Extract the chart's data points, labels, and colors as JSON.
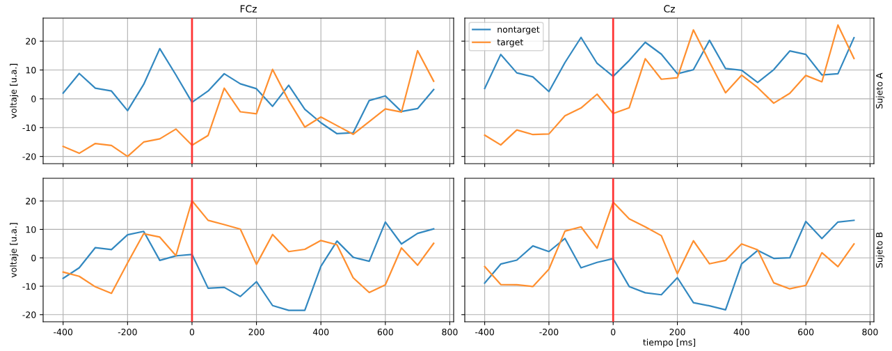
{
  "chart_data": [
    {
      "type": "line",
      "title": "FCz",
      "ylabel": "voltaje [u.a.]",
      "x": [
        -400,
        -350,
        -300,
        -250,
        -200,
        -150,
        -100,
        -50,
        0,
        50,
        100,
        150,
        200,
        250,
        300,
        350,
        400,
        450,
        500,
        550,
        600,
        650,
        700,
        750
      ],
      "xlim": [
        -462,
        812
      ],
      "xticks": [
        -400,
        -200,
        0,
        200,
        400,
        600,
        800
      ],
      "ylim": [
        -22.5,
        28
      ],
      "yticks": [
        -20,
        -10,
        0,
        10,
        20
      ],
      "grid": true,
      "tick_labels": "y",
      "series": [
        {
          "color": "#3288c0",
          "values": [
            2.0,
            8.8,
            3.7,
            2.7,
            -4.1,
            5.0,
            17.4,
            8.3,
            -1.2,
            2.7,
            8.7,
            5.2,
            3.5,
            -2.6,
            4.7,
            -3.6,
            -8.3,
            -12.1,
            -11.8,
            -0.6,
            1.0,
            -4.4,
            -3.4,
            3.2
          ]
        },
        {
          "color": "#ff8f2f",
          "values": [
            -16.5,
            -18.9,
            -15.5,
            -16.2,
            -20.0,
            -15.0,
            -13.9,
            -10.5,
            -16.1,
            -12.7,
            3.7,
            -4.5,
            -5.2,
            10.2,
            -0.6,
            -9.8,
            -6.3,
            -9.3,
            -12.3,
            -7.9,
            -3.5,
            -4.6,
            16.7,
            6.1
          ]
        }
      ],
      "ref_lines": [
        {
          "axis": "x",
          "value": 0,
          "color": "#ff3333"
        }
      ]
    },
    {
      "type": "line",
      "title": "Cz",
      "y2label": "Sujeto A",
      "x": [
        -400,
        -350,
        -300,
        -250,
        -200,
        -150,
        -100,
        -50,
        0,
        50,
        100,
        150,
        200,
        250,
        300,
        350,
        400,
        450,
        500,
        550,
        600,
        650,
        700,
        750
      ],
      "xlim": [
        -462,
        812
      ],
      "xticks": [
        -400,
        -200,
        0,
        200,
        400,
        600,
        800
      ],
      "ylim": [
        -22.5,
        28
      ],
      "yticks": [
        -20,
        -10,
        0,
        10,
        20
      ],
      "grid": true,
      "tick_labels": false,
      "legend": "top left",
      "series": [
        {
          "name": "nontarget",
          "color": "#3288c0",
          "values": [
            3.6,
            15.4,
            9.0,
            7.6,
            2.5,
            12.6,
            21.3,
            12.3,
            7.8,
            13.3,
            19.6,
            15.5,
            8.7,
            10.1,
            20.3,
            10.5,
            9.9,
            5.7,
            10.1,
            16.6,
            15.4,
            8.3,
            8.7,
            21.2
          ]
        },
        {
          "name": "target",
          "color": "#ff8f2f",
          "values": [
            -12.6,
            -16.0,
            -10.8,
            -12.4,
            -12.2,
            -5.9,
            -3.2,
            1.6,
            -5.1,
            -3.1,
            13.9,
            6.8,
            7.3,
            23.9,
            12.8,
            2.1,
            8.2,
            3.9,
            -1.5,
            1.9,
            8.1,
            5.9,
            25.6,
            14.0
          ]
        }
      ],
      "ref_lines": [
        {
          "axis": "x",
          "value": 0,
          "color": "#ff3333"
        }
      ]
    },
    {
      "type": "line",
      "ylabel": "voltaje [u.a.]",
      "x": [
        -400,
        -350,
        -300,
        -250,
        -200,
        -150,
        -100,
        -50,
        0,
        50,
        100,
        150,
        200,
        250,
        300,
        350,
        400,
        450,
        500,
        550,
        600,
        650,
        700,
        750
      ],
      "xlim": [
        -462,
        812
      ],
      "xticks": [
        -400,
        -200,
        0,
        200,
        400,
        600,
        800
      ],
      "ylim": [
        -22.5,
        28
      ],
      "yticks": [
        -20,
        -10,
        0,
        10,
        20
      ],
      "grid": true,
      "series": [
        {
          "color": "#3288c0",
          "values": [
            -7.2,
            -3.5,
            3.6,
            2.9,
            8.1,
            9.3,
            -0.9,
            0.7,
            1.2,
            -10.7,
            -10.4,
            -13.6,
            -8.4,
            -16.8,
            -18.5,
            -18.5,
            -3.0,
            5.9,
            0.2,
            -1.2,
            12.6,
            4.9,
            8.6,
            10.2
          ]
        },
        {
          "color": "#ff8f2f",
          "values": [
            -5.0,
            -6.5,
            -10.2,
            -12.5,
            -1.8,
            8.5,
            7.3,
            0.8,
            20.1,
            13.2,
            11.7,
            10.1,
            -2.3,
            8.2,
            2.2,
            3.0,
            6.1,
            4.6,
            -7.0,
            -12.2,
            -9.5,
            3.5,
            -2.6,
            5.1
          ]
        }
      ],
      "ref_lines": [
        {
          "axis": "x",
          "value": 0,
          "color": "#ff3333"
        }
      ]
    },
    {
      "type": "line",
      "xlabel": "tiempo [ms]",
      "y2label": "Sujeto B",
      "x": [
        -400,
        -350,
        -300,
        -250,
        -200,
        -150,
        -100,
        -50,
        0,
        50,
        100,
        150,
        200,
        250,
        300,
        350,
        400,
        450,
        500,
        550,
        600,
        650,
        700,
        750
      ],
      "xlim": [
        -462,
        812
      ],
      "xticks": [
        -400,
        -200,
        0,
        200,
        400,
        600,
        800
      ],
      "ylim": [
        -22.5,
        28
      ],
      "yticks": [
        -20,
        -10,
        0,
        10,
        20
      ],
      "grid": true,
      "tick_labels": "x",
      "series": [
        {
          "color": "#3288c0",
          "values": [
            -8.9,
            -2.2,
            -0.8,
            4.2,
            2.2,
            6.8,
            -3.5,
            -1.6,
            -0.3,
            -10.1,
            -12.3,
            -13.0,
            -7.0,
            -15.8,
            -16.9,
            -18.3,
            -2.1,
            2.6,
            -0.2,
            0.0,
            12.8,
            6.8,
            12.6,
            13.2
          ]
        },
        {
          "color": "#ff8f2f",
          "values": [
            -3.1,
            -9.4,
            -9.5,
            -10.1,
            -4.0,
            9.4,
            10.9,
            3.4,
            19.6,
            13.7,
            10.9,
            7.8,
            -5.6,
            6.0,
            -2.1,
            -0.9,
            4.9,
            2.8,
            -8.8,
            -10.9,
            -9.7,
            1.8,
            -3.1,
            4.9
          ]
        }
      ],
      "ref_lines": [
        {
          "axis": "x",
          "value": 0,
          "color": "#ff3333"
        }
      ]
    }
  ]
}
